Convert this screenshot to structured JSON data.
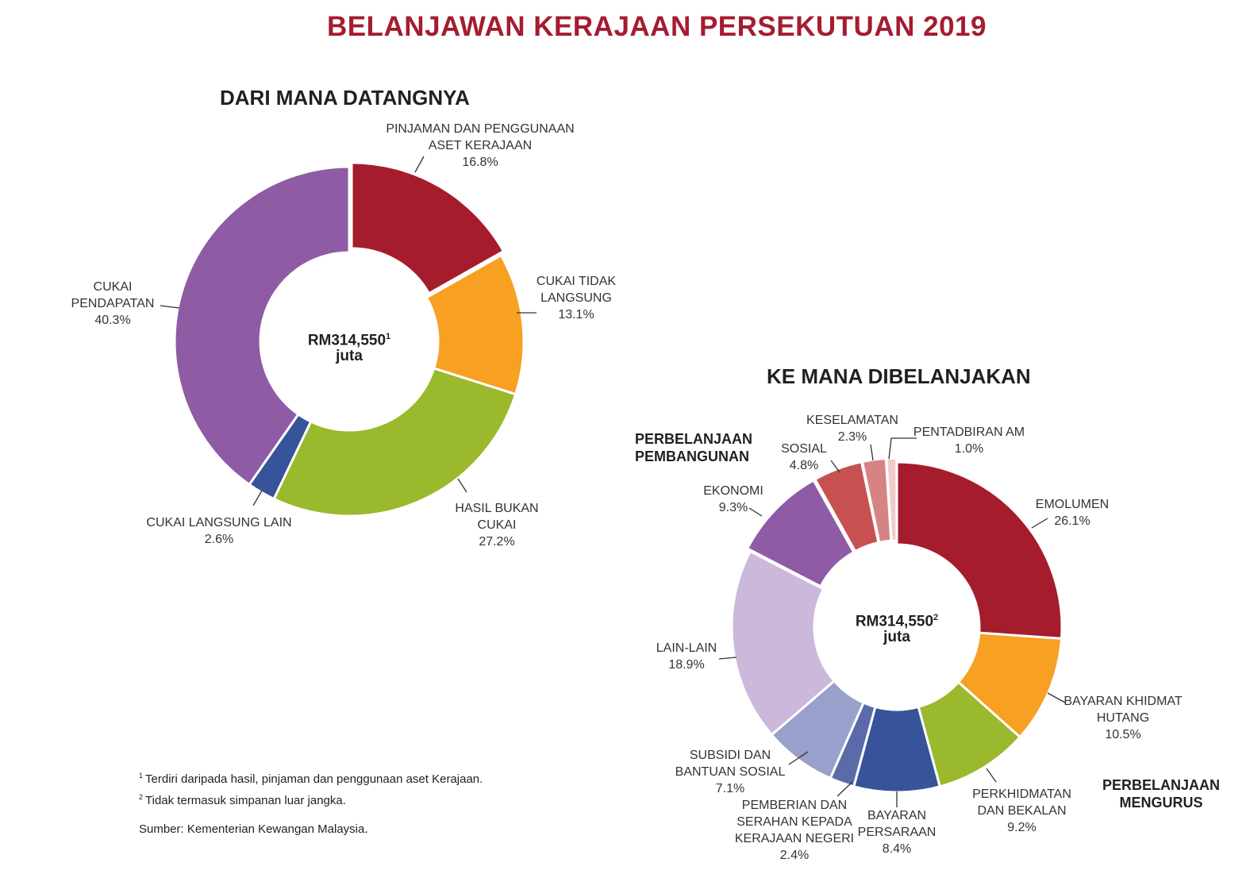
{
  "title": "BELANJAWAN KERAJAAN PERSEKUTUAN 2019",
  "colors": {
    "title": "#a51c30",
    "dark_red": "#a51c2c",
    "orange": "#f7a021",
    "green": "#9ab92d",
    "navy": "#375399",
    "purple": "#8e5ba4",
    "lavender": "#cbb8da",
    "light_blue": "#98a0cb",
    "slate": "#5b6aa8",
    "salmon": "#c75151",
    "rose": "#d68483",
    "pale_pink": "#f2cbcb"
  },
  "chart_data": [
    {
      "type": "pie",
      "title": "DARI MANA DATANGNYA",
      "center": {
        "amount": "RM314,550",
        "sup": "1",
        "unit": "juta"
      },
      "slices": [
        {
          "label": "PINJAMAN DAN PENGGUNAAN ASET KERAJAAN",
          "value": 16.8,
          "display": "16.8%",
          "color": "#a51c2c"
        },
        {
          "label": "CUKAI TIDAK LANGSUNG",
          "value": 13.1,
          "display": "13.1%",
          "color": "#f7a021"
        },
        {
          "label": "HASIL BUKAN CUKAI",
          "value": 27.2,
          "display": "27.2%",
          "color": "#9ab92d"
        },
        {
          "label": "CUKAI LANGSUNG LAIN",
          "value": 2.6,
          "display": "2.6%",
          "color": "#375399"
        },
        {
          "label": "CUKAI PENDAPATAN",
          "value": 40.3,
          "display": "40.3%",
          "color": "#8e5ba4"
        }
      ]
    },
    {
      "type": "pie",
      "title": "KE MANA DIBELANJAKAN",
      "center": {
        "amount": "RM314,550",
        "sup": "2",
        "unit": "juta"
      },
      "groups": {
        "development": "PERBELANJAAN PEMBANGUNAN",
        "operating": "PERBELANJAAN MENGURUS"
      },
      "slices": [
        {
          "label": "EMOLUMEN",
          "value": 26.1,
          "display": "26.1%",
          "color": "#a51c2c",
          "group": "operating"
        },
        {
          "label": "BAYARAN KHIDMAT HUTANG",
          "value": 10.5,
          "display": "10.5%",
          "color": "#f7a021",
          "group": "operating"
        },
        {
          "label": "PERKHIDMATAN DAN BEKALAN",
          "value": 9.2,
          "display": "9.2%",
          "color": "#9ab92d",
          "group": "operating"
        },
        {
          "label": "BAYARAN PERSARAAN",
          "value": 8.4,
          "display": "8.4%",
          "color": "#375399",
          "group": "operating"
        },
        {
          "label": "PEMBERIAN DAN SERAHAN KEPADA KERAJAAN NEGERI",
          "value": 2.4,
          "display": "2.4%",
          "color": "#5b6aa8",
          "group": "operating"
        },
        {
          "label": "SUBSIDI DAN BANTUAN SOSIAL",
          "value": 7.1,
          "display": "7.1%",
          "color": "#98a0cb",
          "group": "operating"
        },
        {
          "label": "LAIN-LAIN",
          "value": 18.9,
          "display": "18.9%",
          "color": "#cbb8da",
          "group": "operating"
        },
        {
          "label": "EKONOMI",
          "value": 9.3,
          "display": "9.3%",
          "color": "#8e5ba4",
          "group": "development"
        },
        {
          "label": "SOSIAL",
          "value": 4.8,
          "display": "4.8%",
          "color": "#c75151",
          "group": "development"
        },
        {
          "label": "KESELAMATAN",
          "value": 2.3,
          "display": "2.3%",
          "color": "#d68483",
          "group": "development"
        },
        {
          "label": "PENTADBIRAN AM",
          "value": 1.0,
          "display": "1.0%",
          "color": "#f2cbcb",
          "group": "development"
        }
      ]
    }
  ],
  "labels": {
    "left": {
      "pinjaman": [
        "PINJAMAN DAN PENGGUNAAN",
        "ASET KERAJAAN",
        "16.8%"
      ],
      "cukai_tidak": [
        "CUKAI TIDAK",
        "LANGSUNG",
        "13.1%"
      ],
      "hasil": [
        "HASIL  BUKAN",
        "CUKAI",
        "27.2%"
      ],
      "cukai_langsung": [
        "CUKAI LANGSUNG LAIN",
        "2.6%"
      ],
      "cukai_pendapatan": [
        "CUKAI",
        "PENDAPATAN",
        "40.3%"
      ]
    },
    "right": {
      "emolumen": [
        "EMOLUMEN",
        "26.1%"
      ],
      "hutang": [
        "BAYARAN KHIDMAT",
        "HUTANG",
        "10.5%"
      ],
      "perkhidmatan": [
        "PERKHIDMATAN",
        "DAN BEKALAN",
        "9.2%"
      ],
      "persaraan": [
        "BAYARAN",
        "PERSARAAN",
        "8.4%"
      ],
      "pemberian": [
        "PEMBERIAN DAN",
        "SERAHAN KEPADA",
        "KERAJAAN NEGERI",
        "2.4%"
      ],
      "subsidi": [
        "SUBSIDI DAN",
        "BANTUAN SOSIAL",
        "7.1%"
      ],
      "lain": [
        "LAIN-LAIN",
        "18.9%"
      ],
      "ekonomi": [
        "EKONOMI",
        "9.3%"
      ],
      "sosial": [
        "SOSIAL",
        "4.8%"
      ],
      "keselamatan": [
        "KESELAMATAN",
        "2.3%"
      ],
      "pentadbiran": [
        "PENTADBIRAN AM",
        "1.0%"
      ]
    },
    "group_dev": [
      "PERBELANJAAN",
      "PEMBANGUNAN"
    ],
    "group_op": [
      "PERBELANJAAN",
      "MENGURUS"
    ]
  },
  "footnotes": [
    {
      "sup": "1",
      "text": "Terdiri daripada hasil, pinjaman dan penggunaan aset Kerajaan."
    },
    {
      "sup": "2",
      "text": "Tidak termasuk simpanan luar jangka."
    }
  ],
  "source": "Sumber: Kementerian Kewangan Malaysia."
}
